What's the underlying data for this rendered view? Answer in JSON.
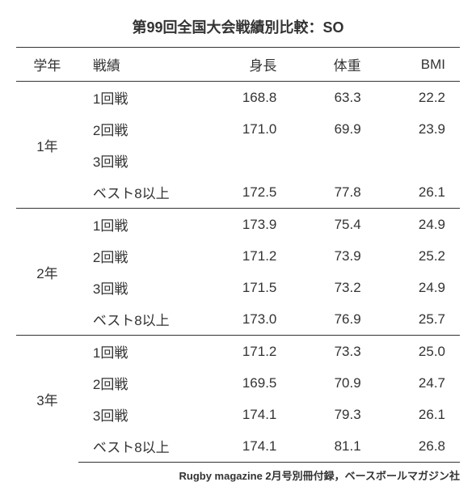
{
  "title": "第99回全国大会戦績別比較：SO",
  "columns": {
    "grade": "学年",
    "result": "戦績",
    "height": "身長",
    "weight": "体重",
    "bmi": "BMI"
  },
  "groups": [
    {
      "grade": "1年",
      "rows": [
        {
          "result": "1回戦",
          "height": "168.8",
          "weight": "63.3",
          "bmi": "22.2"
        },
        {
          "result": "2回戦",
          "height": "171.0",
          "weight": "69.9",
          "bmi": "23.9"
        },
        {
          "result": "3回戦",
          "height": "",
          "weight": "",
          "bmi": ""
        },
        {
          "result": "ベスト8以上",
          "height": "172.5",
          "weight": "77.8",
          "bmi": "26.1"
        }
      ]
    },
    {
      "grade": "2年",
      "rows": [
        {
          "result": "1回戦",
          "height": "173.9",
          "weight": "75.4",
          "bmi": "24.9"
        },
        {
          "result": "2回戦",
          "height": "171.2",
          "weight": "73.9",
          "bmi": "25.2"
        },
        {
          "result": "3回戦",
          "height": "171.5",
          "weight": "73.2",
          "bmi": "24.9"
        },
        {
          "result": "ベスト8以上",
          "height": "173.0",
          "weight": "76.9",
          "bmi": "25.7"
        }
      ]
    },
    {
      "grade": "3年",
      "rows": [
        {
          "result": "1回戦",
          "height": "171.2",
          "weight": "73.3",
          "bmi": "25.0"
        },
        {
          "result": "2回戦",
          "height": "169.5",
          "weight": "70.9",
          "bmi": "24.7"
        },
        {
          "result": "3回戦",
          "height": "174.1",
          "weight": "79.3",
          "bmi": "26.1"
        },
        {
          "result": "ベスト8以上",
          "height": "174.1",
          "weight": "81.1",
          "bmi": "26.8"
        }
      ]
    }
  ],
  "source": "Rugby magazine 2月号別冊付録，ベースボールマガジン社"
}
